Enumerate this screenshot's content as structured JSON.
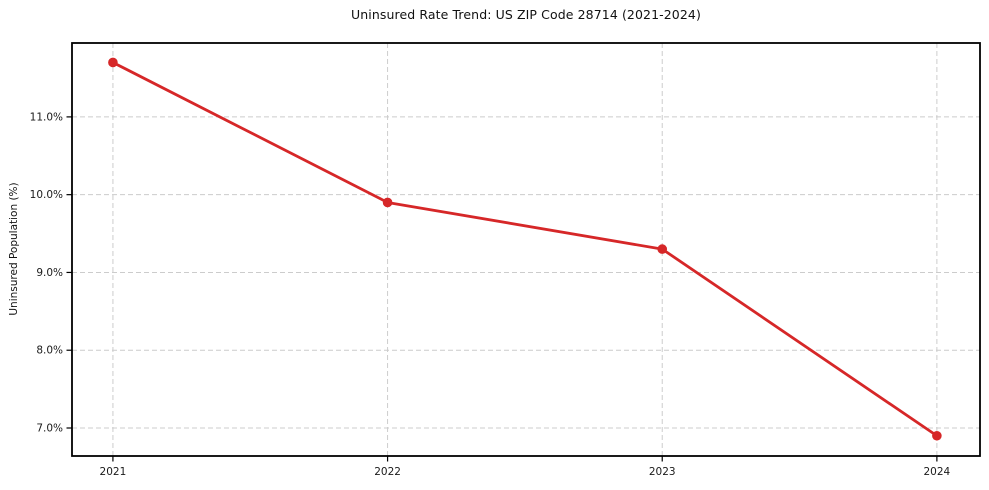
{
  "chart_data": {
    "type": "line",
    "title": "Uninsured Rate Trend: US ZIP Code 28714 (2021-2024)",
    "xlabel": "",
    "ylabel": "Uninsured Population (%)",
    "x": [
      2021,
      2022,
      2023,
      2024
    ],
    "series": [
      {
        "name": "Uninsured rate",
        "values": [
          11.7,
          9.9,
          9.3,
          6.9
        ],
        "color": "#d62728",
        "marker": "circle"
      }
    ],
    "xtick_labels": [
      "2021",
      "2022",
      "2023",
      "2024"
    ],
    "ytick_values": [
      7.0,
      8.0,
      9.0,
      10.0,
      11.0
    ],
    "ytick_labels": [
      "7.0%",
      "8.0%",
      "9.0%",
      "10.0%",
      "11.0%"
    ],
    "xlim": [
      2020.851,
      2024.157
    ],
    "ylim": [
      6.64,
      11.95
    ],
    "grid": true,
    "grid_style": "dashed",
    "grid_color": "#cccccc",
    "border_color": "#000000",
    "background_color": "#ffffff",
    "legend": "none"
  }
}
